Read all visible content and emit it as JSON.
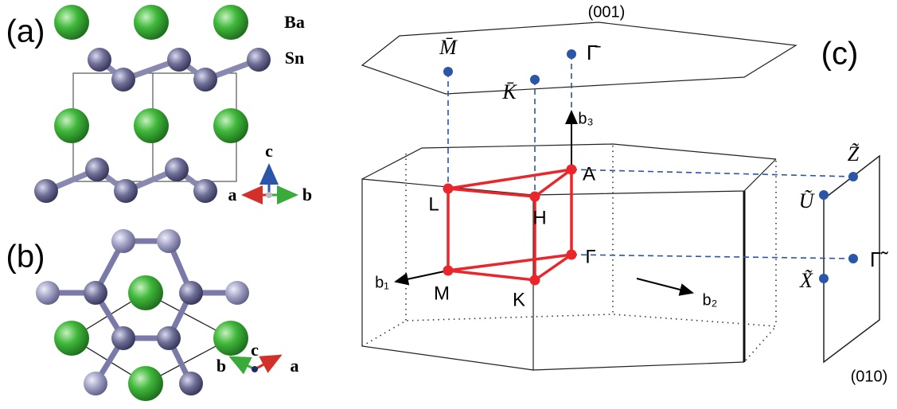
{
  "panel_a": {
    "label": "(a)",
    "atoms": [
      "Ba",
      "Sn"
    ],
    "axes": {
      "c": "c",
      "a": "a",
      "b": "b"
    }
  },
  "panel_b": {
    "label": "(b)",
    "axes": {
      "b": "b",
      "c": "c",
      "a": "a"
    }
  },
  "panel_c": {
    "label": "(c)",
    "surface_001": {
      "label": "(001)",
      "points": [
        "M̄",
        "K̄",
        "Γ̄"
      ]
    },
    "bulk_points": [
      "A",
      "L",
      "H",
      "Γ",
      "M",
      "K"
    ],
    "vectors": [
      "b₁",
      "b₂",
      "b₃"
    ],
    "surface_010": {
      "label": "(010)",
      "points": [
        "Z̃",
        "Ũ",
        "Γ̃",
        "X̃"
      ]
    }
  }
}
